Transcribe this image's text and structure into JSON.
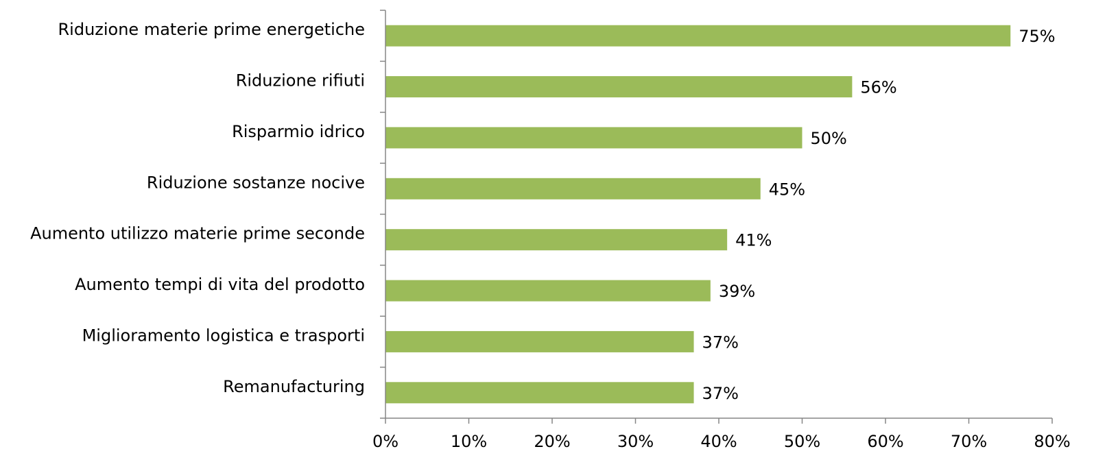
{
  "chart_data": {
    "type": "bar",
    "orientation": "horizontal",
    "title": "",
    "xlabel": "",
    "ylabel": "",
    "categories": [
      "Riduzione materie prime energetiche",
      "Riduzione rifiuti",
      "Risparmio idrico",
      "Riduzione sostanze nocive",
      "Aumento utilizzo materie prime seconde",
      "Aumento tempi di vita del prodotto",
      "Miglioramento logistica e trasporti",
      "Remanufacturing"
    ],
    "values": [
      75,
      56,
      50,
      45,
      41,
      39,
      37,
      37
    ],
    "value_labels": [
      "75%",
      "56%",
      "50%",
      "45%",
      "41%",
      "39%",
      "37%",
      "37%"
    ],
    "xlim": [
      0,
      80
    ],
    "x_ticks": [
      0,
      10,
      20,
      30,
      40,
      50,
      60,
      70,
      80
    ],
    "x_tick_labels": [
      "0%",
      "10%",
      "20%",
      "30%",
      "40%",
      "50%",
      "60%",
      "70%",
      "80%"
    ],
    "grid": false,
    "legend": "none",
    "bar_color": "#9BBB59",
    "axis_color": "#868686"
  }
}
